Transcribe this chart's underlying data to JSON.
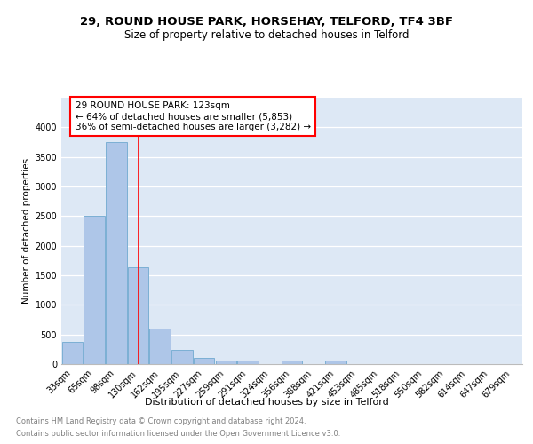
{
  "title1": "29, ROUND HOUSE PARK, HORSEHAY, TELFORD, TF4 3BF",
  "title2": "Size of property relative to detached houses in Telford",
  "xlabel": "Distribution of detached houses by size in Telford",
  "ylabel": "Number of detached properties",
  "categories": [
    "33sqm",
    "65sqm",
    "98sqm",
    "130sqm",
    "162sqm",
    "195sqm",
    "227sqm",
    "259sqm",
    "291sqm",
    "324sqm",
    "356sqm",
    "388sqm",
    "421sqm",
    "453sqm",
    "485sqm",
    "518sqm",
    "550sqm",
    "582sqm",
    "614sqm",
    "647sqm",
    "679sqm"
  ],
  "values": [
    375,
    2500,
    3750,
    1640,
    600,
    240,
    105,
    65,
    60,
    0,
    60,
    0,
    60,
    0,
    0,
    0,
    0,
    0,
    0,
    0,
    0
  ],
  "bar_color": "#aec6e8",
  "bar_edge_color": "#7bafd4",
  "vline_x": 3,
  "vline_color": "red",
  "annotation_text": "29 ROUND HOUSE PARK: 123sqm\n← 64% of detached houses are smaller (5,853)\n36% of semi-detached houses are larger (3,282) →",
  "annotation_box_color": "white",
  "annotation_box_edge": "red",
  "ylim": [
    0,
    4500
  ],
  "yticks": [
    0,
    500,
    1000,
    1500,
    2000,
    2500,
    3000,
    3500,
    4000
  ],
  "background_color": "#dde8f5",
  "footer1": "Contains HM Land Registry data © Crown copyright and database right 2024.",
  "footer2": "Contains public sector information licensed under the Open Government Licence v3.0.",
  "title1_fontsize": 9.5,
  "title2_fontsize": 8.5,
  "xlabel_fontsize": 8,
  "ylabel_fontsize": 7.5,
  "tick_fontsize": 7,
  "annotation_fontsize": 7.5,
  "footer_fontsize": 6
}
